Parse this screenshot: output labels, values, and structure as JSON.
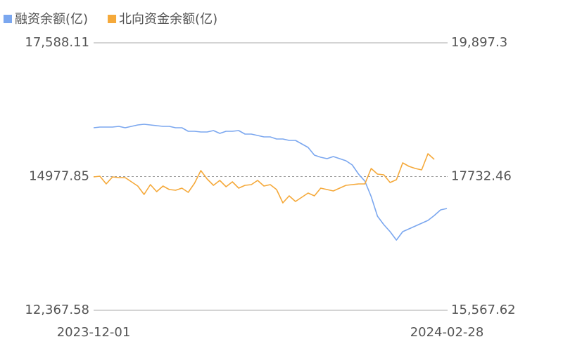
{
  "chart_data": {
    "type": "line",
    "legend": "top-left",
    "categories": [
      "2023-12-01",
      null,
      null,
      null,
      null,
      null,
      null,
      null,
      null,
      null,
      null,
      null,
      null,
      null,
      null,
      null,
      null,
      null,
      null,
      null,
      null,
      null,
      null,
      null,
      null,
      null,
      null,
      null,
      null,
      null,
      null,
      null,
      null,
      null,
      null,
      null,
      null,
      null,
      null,
      null,
      null,
      null,
      null,
      null,
      null,
      null,
      null,
      null,
      null,
      null,
      null,
      null,
      null,
      null,
      null,
      null,
      "2024-02-28"
    ],
    "ylim": [
      12367.58,
      17588.11
    ],
    "yticks": [
      {
        "value": 17588.11,
        "label": "17,588.11"
      },
      14977.85,
      {
        "value": 12367.58,
        "label": "12,367.58"
      }
    ],
    "y2lim": [
      15567.62,
      19897.3
    ],
    "y2ticks": [
      {
        "value": 19897.3,
        "label": "19,897.3"
      },
      17732.46,
      {
        "value": 15567.62,
        "label": "15,567.62"
      }
    ],
    "series": [
      {
        "name": "融资余额(亿)",
        "color": "#7ba7ef",
        "values": [
          15930.2,
          15943.9,
          15943.9,
          15943.9,
          15957.6,
          15930.2,
          15957.6,
          15985.0,
          15998.7,
          15985.0,
          15971.3,
          15957.6,
          15957.6,
          15930.2,
          15930.2,
          15861.6,
          15861.6,
          15847.9,
          15847.9,
          15875.3,
          15820.5,
          15861.6,
          15861.6,
          15875.3,
          15806.8,
          15806.8,
          15779.4,
          15752.0,
          15752.0,
          15710.9,
          15710.9,
          15683.5,
          15683.5,
          15615.0,
          15546.5,
          15395.8,
          15354.7,
          15327.3,
          15368.4,
          15327.3,
          15286.2,
          15204.0,
          15025.8,
          14888.8,
          14587.4,
          14203.7,
          14039.3,
          13902.3,
          13737.8,
          13902.3,
          13957.1,
          14011.9,
          14066.7,
          14121.5,
          14217.4,
          14327.0,
          14354.4
        ]
      },
      {
        "name": "北向资金余额(亿)",
        "color": "#f5a93a",
        "axis": "y2",
        "values": [
          17726.8,
          17738.1,
          17613.1,
          17726.8,
          17715.4,
          17715.4,
          17647.2,
          17579.0,
          17442.7,
          17601.8,
          17488.1,
          17579.0,
          17522.2,
          17510.9,
          17545.0,
          17476.8,
          17624.5,
          17829.1,
          17692.7,
          17590.4,
          17670.0,
          17567.7,
          17647.2,
          17545.0,
          17590.4,
          17601.8,
          17670.0,
          17579.0,
          17601.8,
          17522.2,
          17306.3,
          17419.9,
          17329.0,
          17397.2,
          17465.4,
          17419.9,
          17545.0,
          17522.2,
          17499.5,
          17545.0,
          17590.4,
          17601.8,
          17613.1,
          17613.1,
          17863.1,
          17772.2,
          17760.9,
          17635.9,
          17681.3,
          17954.1,
          17897.2,
          17863.1,
          17840.4,
          18101.8,
          18010.9,
          null,
          null
        ]
      }
    ]
  }
}
